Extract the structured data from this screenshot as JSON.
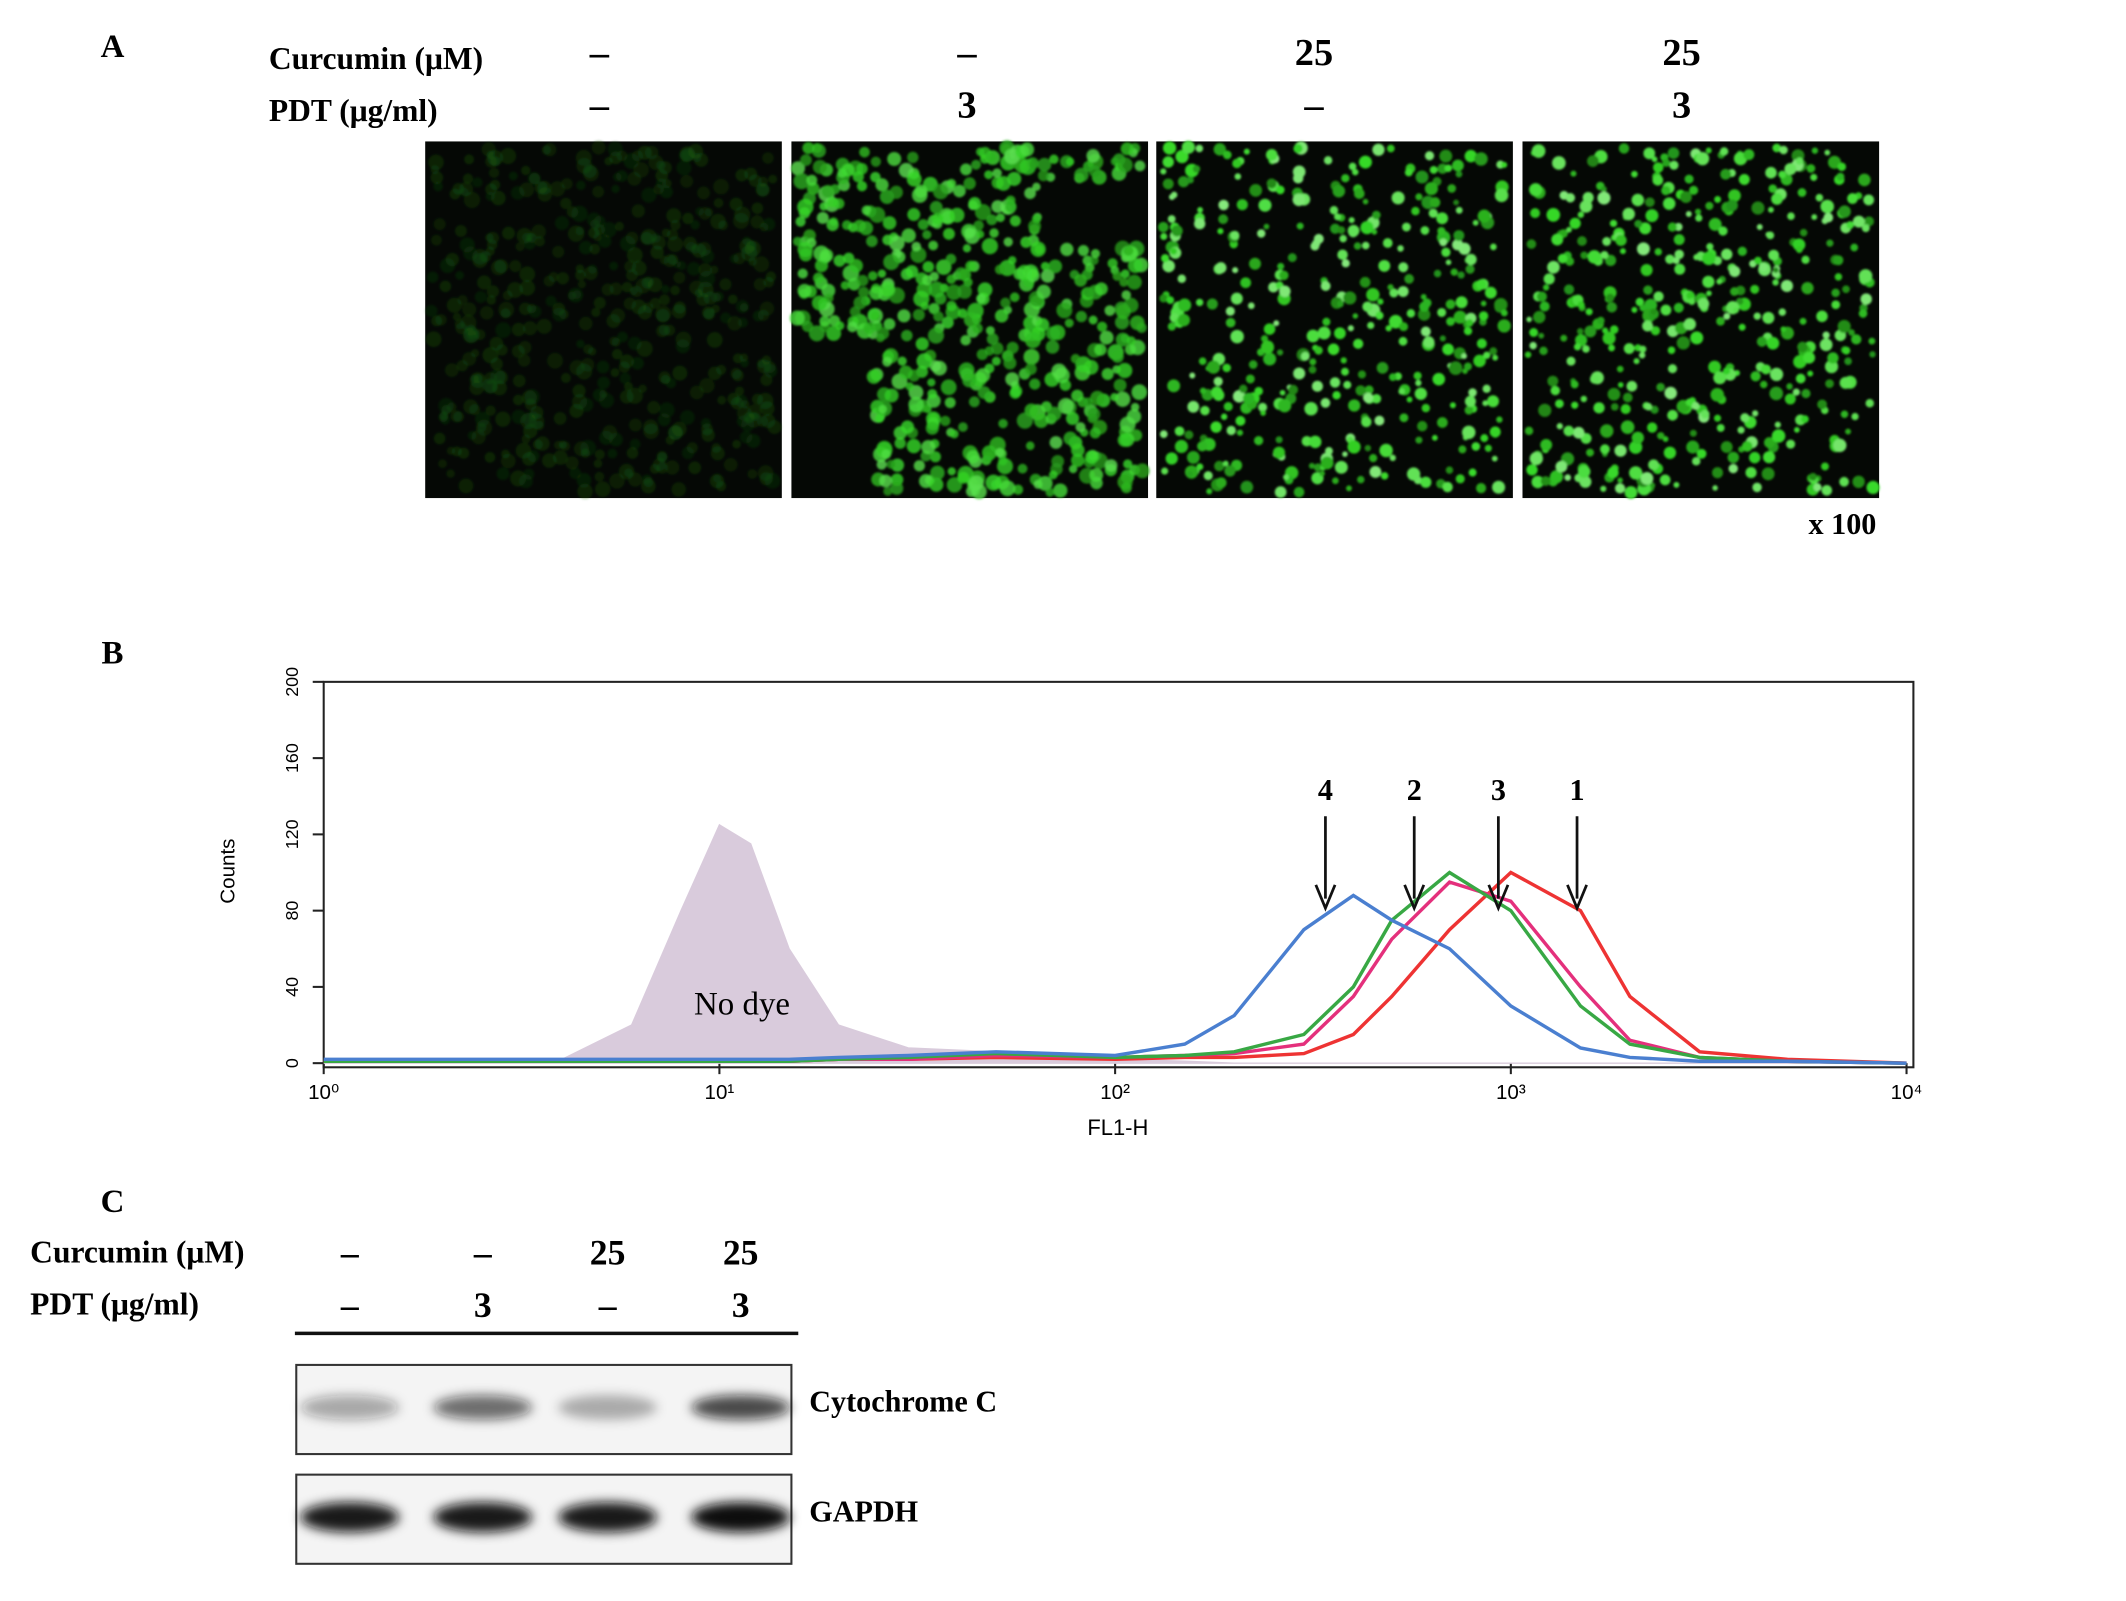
{
  "panel_a": {
    "label": "A",
    "rows": [
      {
        "name": "Curcumin (μM)",
        "values": [
          "–",
          "–",
          "25",
          "25"
        ]
      },
      {
        "name": "PDT (μg/ml)",
        "values": [
          "–",
          "3",
          "–",
          "3"
        ]
      }
    ],
    "magnification": "x 100"
  },
  "chart_data": {
    "type": "line",
    "panel_label": "B",
    "xlabel": "FL1-H",
    "ylabel": "Counts",
    "log_x": true,
    "x": [
      1,
      2,
      4,
      6,
      8,
      10,
      12,
      15,
      20,
      30,
      50,
      100,
      150,
      200,
      300,
      400,
      500,
      700,
      1000,
      1500,
      2000,
      3000,
      5000,
      10000
    ],
    "xlim": [
      1,
      10000
    ],
    "xticks": [
      {
        "value": 1,
        "label": "10⁰"
      },
      {
        "value": 10,
        "label": "10¹"
      },
      {
        "value": 100,
        "label": "10²"
      },
      {
        "value": 1000,
        "label": "10³"
      },
      {
        "value": 10000,
        "label": "10⁴"
      }
    ],
    "ylim": [
      0,
      200
    ],
    "yticks": [
      0,
      40,
      80,
      120,
      160,
      200
    ],
    "series": [
      {
        "name": "No dye",
        "color": "#d9cbdc",
        "filled": true,
        "values": [
          0,
          0,
          2,
          20,
          80,
          125,
          115,
          60,
          20,
          8,
          6,
          2,
          1,
          0,
          0,
          0,
          0,
          0,
          0,
          0,
          0,
          0,
          0,
          0
        ]
      },
      {
        "name": "1",
        "color": "#ee3333",
        "arrow_x": 1470,
        "values": [
          1,
          1,
          1,
          1,
          1,
          1,
          1,
          1,
          2,
          2,
          3,
          2,
          3,
          3,
          5,
          15,
          35,
          70,
          100,
          80,
          35,
          6,
          2,
          0
        ]
      },
      {
        "name": "2",
        "color": "#e4307c",
        "arrow_x": 570,
        "values": [
          1,
          1,
          1,
          1,
          1,
          1,
          1,
          1,
          2,
          2,
          4,
          3,
          4,
          5,
          10,
          35,
          65,
          95,
          85,
          40,
          12,
          3,
          1,
          0
        ]
      },
      {
        "name": "3",
        "color": "#38a844",
        "arrow_x": 930,
        "values": [
          1,
          1,
          1,
          1,
          1,
          1,
          1,
          1,
          2,
          3,
          5,
          3,
          4,
          6,
          15,
          40,
          75,
          100,
          80,
          30,
          10,
          3,
          1,
          0
        ]
      },
      {
        "name": "4",
        "color": "#4a7fd0",
        "arrow_x": 340,
        "values": [
          2,
          2,
          2,
          2,
          2,
          2,
          2,
          2,
          3,
          4,
          6,
          4,
          10,
          25,
          70,
          88,
          75,
          60,
          30,
          8,
          3,
          1,
          1,
          0
        ]
      }
    ]
  },
  "panel_c": {
    "label": "C",
    "rows": [
      {
        "name": "Curcumin (μM)",
        "values": [
          "–",
          "–",
          "25",
          "25"
        ]
      },
      {
        "name": "PDT (μg/ml)",
        "values": [
          "–",
          "3",
          "–",
          "3"
        ]
      }
    ],
    "bands": [
      "Cytochrome C",
      "GAPDH"
    ]
  }
}
